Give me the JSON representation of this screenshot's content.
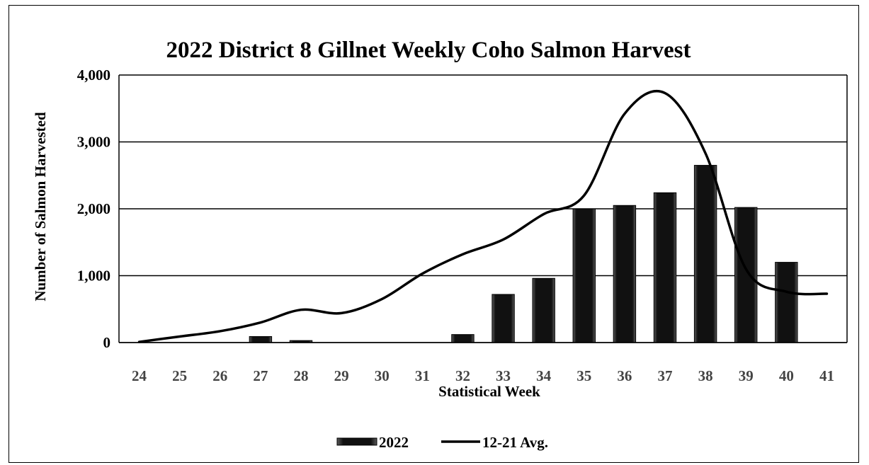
{
  "chart_data": {
    "type": "bar",
    "title": "2022 District 8 Gillnet Weekly Coho Salmon Harvest",
    "xlabel": "Statistical Week",
    "ylabel": "Number of Salmon Harvested",
    "ylim": [
      0,
      4000
    ],
    "yticks": [
      "0",
      "1,000",
      "2,000",
      "3,000",
      "4,000"
    ],
    "categories": [
      "24",
      "25",
      "26",
      "27",
      "28",
      "29",
      "30",
      "31",
      "32",
      "33",
      "34",
      "35",
      "36",
      "37",
      "38",
      "39",
      "40",
      "41"
    ],
    "series": [
      {
        "name": "2022",
        "type": "bar",
        "color": "#111111",
        "values": [
          0,
          0,
          0,
          90,
          30,
          0,
          0,
          0,
          120,
          720,
          960,
          2000,
          2050,
          2240,
          2650,
          2020,
          1200,
          0
        ]
      },
      {
        "name": "12-21 Avg.",
        "type": "line",
        "color": "#000000",
        "values": [
          10,
          90,
          170,
          300,
          490,
          440,
          650,
          1030,
          1320,
          1540,
          1920,
          2200,
          3420,
          3730,
          2830,
          1100,
          760,
          730
        ]
      }
    ],
    "legend_position": "bottom",
    "grid": true
  }
}
